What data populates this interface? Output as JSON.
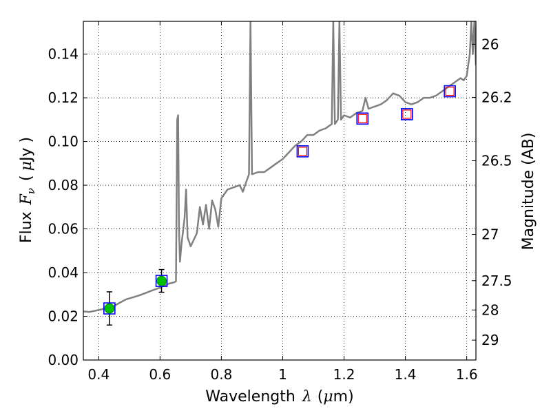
{
  "chart_data": {
    "type": "scatter",
    "title": "",
    "xlabel": {
      "prefix": "Wavelength",
      "symbol": "λ",
      "unit_open": "(",
      "unit_mu": "μ",
      "unit_rest": "m)"
    },
    "ylabel": {
      "prefix": "Flux",
      "symbol": "F",
      "subscript": "ν",
      "unit_open": "(",
      "unit_mu": "μ",
      "unit_rest": "Jy )"
    },
    "y2label": "Magnitude (AB)",
    "xlim": [
      0.35,
      1.63
    ],
    "ylim": [
      0.0,
      0.155
    ],
    "grid": true,
    "x_ticks": [
      {
        "value": 0.4,
        "label": "0.4"
      },
      {
        "value": 0.6,
        "label": "0.6"
      },
      {
        "value": 0.8,
        "label": "0.8"
      },
      {
        "value": 1.0,
        "label": "1"
      },
      {
        "value": 1.2,
        "label": "1.2"
      },
      {
        "value": 1.4,
        "label": "1.4"
      },
      {
        "value": 1.6,
        "label": "1.6"
      }
    ],
    "y_ticks": [
      {
        "value": 0.0,
        "label": "0.00"
      },
      {
        "value": 0.02,
        "label": "0.02"
      },
      {
        "value": 0.04,
        "label": "0.04"
      },
      {
        "value": 0.06,
        "label": "0.06"
      },
      {
        "value": 0.08,
        "label": "0.08"
      },
      {
        "value": 0.1,
        "label": "0.10"
      },
      {
        "value": 0.12,
        "label": "0.12"
      },
      {
        "value": 0.14,
        "label": "0.14"
      }
    ],
    "y2_ticks": [
      {
        "label": "26",
        "flux": 0.1445
      },
      {
        "label": "26.2",
        "flux": 0.1202
      },
      {
        "label": "26.5",
        "flux": 0.0912
      },
      {
        "label": "27",
        "flux": 0.0575
      },
      {
        "label": "27.5",
        "flux": 0.0363
      },
      {
        "label": "28",
        "flux": 0.0229
      },
      {
        "label": "29",
        "flux": 0.0091
      }
    ],
    "series": [
      {
        "type": "line",
        "color": "#808080",
        "points": [
          [
            0.35,
            0.0222
          ],
          [
            0.37,
            0.022
          ],
          [
            0.39,
            0.0226
          ],
          [
            0.41,
            0.0232
          ],
          [
            0.43,
            0.024
          ],
          [
            0.45,
            0.0247
          ],
          [
            0.47,
            0.0263
          ],
          [
            0.49,
            0.0278
          ],
          [
            0.51,
            0.0286
          ],
          [
            0.53,
            0.0295
          ],
          [
            0.55,
            0.0305
          ],
          [
            0.57,
            0.0316
          ],
          [
            0.59,
            0.0326
          ],
          [
            0.61,
            0.0338
          ],
          [
            0.63,
            0.035
          ],
          [
            0.645,
            0.0355
          ],
          [
            0.652,
            0.036
          ],
          [
            0.656,
            0.11
          ],
          [
            0.659,
            0.112
          ],
          [
            0.662,
            0.06
          ],
          [
            0.665,
            0.045
          ],
          [
            0.67,
            0.053
          ],
          [
            0.68,
            0.065
          ],
          [
            0.685,
            0.078
          ],
          [
            0.69,
            0.056
          ],
          [
            0.7,
            0.052
          ],
          [
            0.72,
            0.058
          ],
          [
            0.73,
            0.07
          ],
          [
            0.74,
            0.062
          ],
          [
            0.75,
            0.071
          ],
          [
            0.76,
            0.06
          ],
          [
            0.77,
            0.073
          ],
          [
            0.78,
            0.069
          ],
          [
            0.79,
            0.061
          ],
          [
            0.8,
            0.074
          ],
          [
            0.82,
            0.078
          ],
          [
            0.84,
            0.079
          ],
          [
            0.86,
            0.08
          ],
          [
            0.87,
            0.077
          ],
          [
            0.88,
            0.081
          ],
          [
            0.89,
            0.085
          ],
          [
            0.895,
            0.155
          ],
          [
            0.9,
            0.085
          ],
          [
            0.92,
            0.086
          ],
          [
            0.94,
            0.086
          ],
          [
            0.96,
            0.088
          ],
          [
            0.98,
            0.09
          ],
          [
            1.0,
            0.092
          ],
          [
            1.02,
            0.095
          ],
          [
            1.04,
            0.098
          ],
          [
            1.06,
            0.1
          ],
          [
            1.08,
            0.103
          ],
          [
            1.1,
            0.103
          ],
          [
            1.12,
            0.105
          ],
          [
            1.14,
            0.106
          ],
          [
            1.16,
            0.108
          ],
          [
            1.165,
            0.155
          ],
          [
            1.17,
            0.108
          ],
          [
            1.18,
            0.11
          ],
          [
            1.185,
            0.155
          ],
          [
            1.19,
            0.11
          ],
          [
            1.2,
            0.112
          ],
          [
            1.22,
            0.111
          ],
          [
            1.24,
            0.113
          ],
          [
            1.26,
            0.114
          ],
          [
            1.27,
            0.12
          ],
          [
            1.28,
            0.115
          ],
          [
            1.3,
            0.116
          ],
          [
            1.32,
            0.117
          ],
          [
            1.34,
            0.119
          ],
          [
            1.36,
            0.122
          ],
          [
            1.38,
            0.121
          ],
          [
            1.4,
            0.118
          ],
          [
            1.42,
            0.117
          ],
          [
            1.44,
            0.118
          ],
          [
            1.46,
            0.12
          ],
          [
            1.48,
            0.12
          ],
          [
            1.5,
            0.121
          ],
          [
            1.52,
            0.123
          ],
          [
            1.54,
            0.125
          ],
          [
            1.56,
            0.127
          ],
          [
            1.58,
            0.129
          ],
          [
            1.59,
            0.128
          ],
          [
            1.6,
            0.13
          ],
          [
            1.61,
            0.14
          ],
          [
            1.615,
            0.155
          ],
          [
            1.62,
            0.14
          ],
          [
            1.625,
            0.155
          ],
          [
            1.63,
            0.135
          ]
        ]
      },
      {
        "type": "scatter",
        "marker": "circle",
        "color": "#00c000",
        "error_color": "#000000",
        "points": [
          {
            "x": 0.435,
            "y": 0.0236,
            "err": 0.0076
          },
          {
            "x": 0.605,
            "y": 0.0362,
            "err": 0.0052
          }
        ]
      },
      {
        "type": "scatter",
        "marker": "open-square",
        "color": "#0000ff",
        "points": [
          {
            "x": 0.435,
            "y": 0.0236
          },
          {
            "x": 0.605,
            "y": 0.0362
          },
          {
            "x": 1.065,
            "y": 0.0955
          },
          {
            "x": 1.26,
            "y": 0.1105
          },
          {
            "x": 1.405,
            "y": 0.1125
          },
          {
            "x": 1.545,
            "y": 0.123
          }
        ]
      },
      {
        "type": "scatter",
        "marker": "open-square-small",
        "color": "#ff0000",
        "points": [
          {
            "x": 1.065,
            "y": 0.0955
          },
          {
            "x": 1.26,
            "y": 0.1105
          },
          {
            "x": 1.405,
            "y": 0.1125
          },
          {
            "x": 1.545,
            "y": 0.123
          }
        ]
      }
    ]
  }
}
